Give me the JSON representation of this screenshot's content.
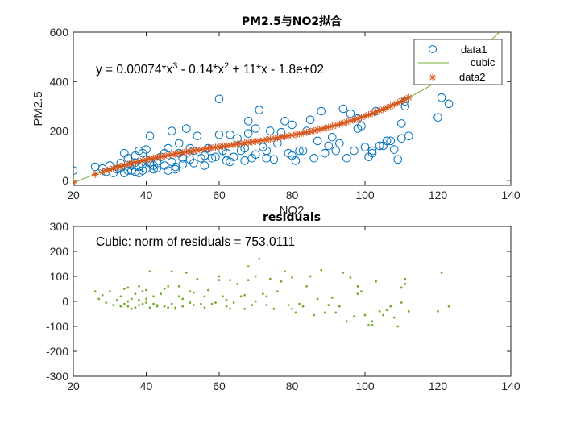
{
  "figure": {
    "background": "#ffffff"
  },
  "chart_data": [
    {
      "type": "scatter",
      "title": "PM2.5与NO2拟合",
      "xlabel": "NO2",
      "ylabel": "PM2.5",
      "xlim": [
        20,
        140
      ],
      "ylim": [
        -20,
        600
      ],
      "xticks": [
        20,
        40,
        60,
        80,
        100,
        120,
        140
      ],
      "yticks": [
        0,
        200,
        400,
        600
      ],
      "xtick_labels": [
        "20",
        "40",
        "60",
        "80",
        "100",
        "120",
        "140"
      ],
      "ytick_labels": [
        "0",
        "200",
        "400",
        "600"
      ],
      "grid": false,
      "legend_position": "top-right",
      "annotation": {
        "prefix": "y = 0.00074*x",
        "exp1": "3",
        "mid": " - 0.14*x",
        "exp2": "2",
        "suffix": " + 11*x - 1.8e+02"
      },
      "fit": {
        "a3": 0.00074,
        "a2": -0.14,
        "a1": 11,
        "a0": -180
      },
      "series": [
        {
          "name": "data1",
          "marker": "circle",
          "color": "#0072BD",
          "x": [
            20,
            26,
            28,
            29,
            30,
            31,
            32,
            33,
            33,
            34,
            34,
            35,
            35,
            36,
            36,
            37,
            37,
            37,
            38,
            38,
            38,
            39,
            39,
            39,
            40,
            40,
            40,
            41,
            41,
            42,
            42,
            43,
            43,
            44,
            45,
            45,
            46,
            46,
            47,
            47,
            48,
            48,
            49,
            49,
            50,
            50,
            51,
            52,
            52,
            53,
            53,
            54,
            55,
            56,
            56,
            57,
            58,
            59,
            60,
            60,
            61,
            62,
            62,
            63,
            63,
            64,
            65,
            66,
            67,
            67,
            68,
            68,
            69,
            70,
            70,
            71,
            72,
            73,
            73,
            74,
            75,
            76,
            77,
            78,
            79,
            80,
            80,
            81,
            82,
            83,
            84,
            85,
            86,
            87,
            88,
            89,
            90,
            91,
            92,
            93,
            94,
            95,
            96,
            97,
            98,
            98,
            99,
            100,
            101,
            102,
            102,
            103,
            104,
            105,
            106,
            107,
            108,
            109,
            110,
            110,
            111,
            111,
            112,
            120,
            121,
            123
          ],
          "y": [
            40,
            55,
            48,
            35,
            60,
            30,
            45,
            52,
            70,
            30,
            110,
            40,
            90,
            60,
            40,
            35,
            72,
            100,
            30,
            55,
            120,
            65,
            110,
            40,
            85,
            48,
            125,
            180,
            70,
            60,
            45,
            70,
            50,
            95,
            60,
            110,
            40,
            130,
            200,
            75,
            55,
            45,
            110,
            150,
            90,
            65,
            210,
            130,
            85,
            120,
            70,
            180,
            90,
            60,
            100,
            130,
            90,
            95,
            185,
            330,
            120,
            80,
            110,
            75,
            185,
            95,
            170,
            120,
            130,
            80,
            190,
            240,
            90,
            105,
            210,
            285,
            135,
            90,
            120,
            200,
            85,
            150,
            195,
            240,
            110,
            100,
            225,
            80,
            120,
            120,
            200,
            245,
            90,
            160,
            280,
            110,
            140,
            175,
            120,
            150,
            290,
            90,
            270,
            120,
            210,
            250,
            220,
            135,
            95,
            120,
            110,
            280,
            140,
            140,
            160,
            160,
            125,
            85,
            170,
            230,
            300,
            320,
            180,
            255,
            335,
            310
          ]
        },
        {
          "name": "cubic",
          "marker": "line",
          "color": "#77AC30"
        },
        {
          "name": "data2",
          "marker": "asterisk",
          "color": "#D95319",
          "x": [
            20,
            26,
            28,
            29,
            30,
            31,
            32,
            33,
            34,
            35,
            36,
            37,
            38,
            39,
            40,
            41,
            42,
            43,
            44,
            45,
            46,
            47,
            48,
            49,
            50,
            51,
            52,
            53,
            54,
            55,
            56,
            57,
            58,
            59,
            60,
            61,
            62,
            63,
            64,
            65,
            66,
            67,
            68,
            69,
            70,
            71,
            72,
            73,
            74,
            75,
            76,
            77,
            78,
            79,
            80,
            81,
            82,
            83,
            84,
            85,
            86,
            87,
            88,
            89,
            90,
            91,
            92,
            93,
            94,
            95,
            96,
            97,
            98,
            99,
            100,
            101,
            102,
            103,
            104,
            105,
            106,
            107,
            108,
            109,
            110,
            111,
            112,
            120,
            121,
            123
          ]
        }
      ]
    },
    {
      "type": "scatter",
      "title": "residuals",
      "xlabel": "",
      "ylabel": "",
      "xlim": [
        20,
        140
      ],
      "ylim": [
        -300,
        300
      ],
      "xticks": [
        20,
        40,
        60,
        80,
        100,
        120,
        140
      ],
      "yticks": [
        -300,
        -200,
        -100,
        0,
        100,
        200,
        300
      ],
      "xtick_labels": [
        "20",
        "40",
        "60",
        "80",
        "100",
        "120",
        "140"
      ],
      "ytick_labels": [
        "-300",
        "-200",
        "-100",
        "0",
        "100",
        "200",
        "300"
      ],
      "grid": false,
      "annotation": "Cubic: norm of residuals = 753.0111",
      "series": [
        {
          "name": "",
          "marker": "dot",
          "color": "#77AC30",
          "x": [
            20,
            26,
            27,
            28,
            29,
            30,
            31,
            32,
            33,
            33,
            34,
            34,
            35,
            35,
            35,
            36,
            36,
            37,
            37,
            38,
            38,
            38,
            39,
            39,
            40,
            40,
            40,
            41,
            41,
            42,
            42,
            43,
            43,
            44,
            45,
            45,
            46,
            46,
            47,
            47,
            48,
            48,
            49,
            49,
            50,
            50,
            51,
            52,
            52,
            53,
            53,
            54,
            55,
            56,
            56,
            57,
            58,
            59,
            60,
            60,
            61,
            62,
            62,
            63,
            63,
            64,
            65,
            66,
            67,
            67,
            68,
            68,
            69,
            70,
            70,
            71,
            72,
            73,
            73,
            74,
            75,
            76,
            77,
            78,
            79,
            80,
            80,
            81,
            82,
            83,
            84,
            85,
            86,
            87,
            88,
            89,
            90,
            91,
            92,
            93,
            94,
            95,
            96,
            97,
            98,
            98,
            99,
            100,
            101,
            102,
            102,
            103,
            104,
            105,
            106,
            107,
            108,
            109,
            110,
            110,
            111,
            111,
            112,
            120,
            121,
            123
          ],
          "y": [
            55,
            40,
            10,
            25,
            -5,
            40,
            -15,
            5,
            20,
            -20,
            -10,
            50,
            -20,
            55,
            0,
            10,
            -30,
            -25,
            30,
            -15,
            5,
            60,
            -10,
            40,
            -5,
            45,
            10,
            120,
            -25,
            20,
            -10,
            -15,
            -20,
            30,
            -20,
            50,
            -25,
            60,
            120,
            -10,
            -25,
            -30,
            20,
            60,
            10,
            -20,
            115,
            40,
            -5,
            35,
            -15,
            90,
            -10,
            -25,
            20,
            45,
            -10,
            -5,
            85,
            100,
            20,
            -20,
            5,
            -30,
            85,
            -5,
            70,
            20,
            25,
            -30,
            85,
            140,
            -15,
            0,
            100,
            170,
            30,
            -15,
            20,
            90,
            -30,
            40,
            80,
            120,
            -15,
            -30,
            95,
            -45,
            -10,
            -20,
            60,
            100,
            -55,
            10,
            125,
            -45,
            -15,
            15,
            -45,
            -20,
            115,
            -80,
            95,
            -60,
            30,
            60,
            40,
            -55,
            -95,
            -80,
            -95,
            80,
            -40,
            -55,
            -35,
            -20,
            -65,
            -100,
            -5,
            55,
            70,
            90,
            -40,
            -40,
            115,
            -20
          ]
        }
      ]
    }
  ]
}
